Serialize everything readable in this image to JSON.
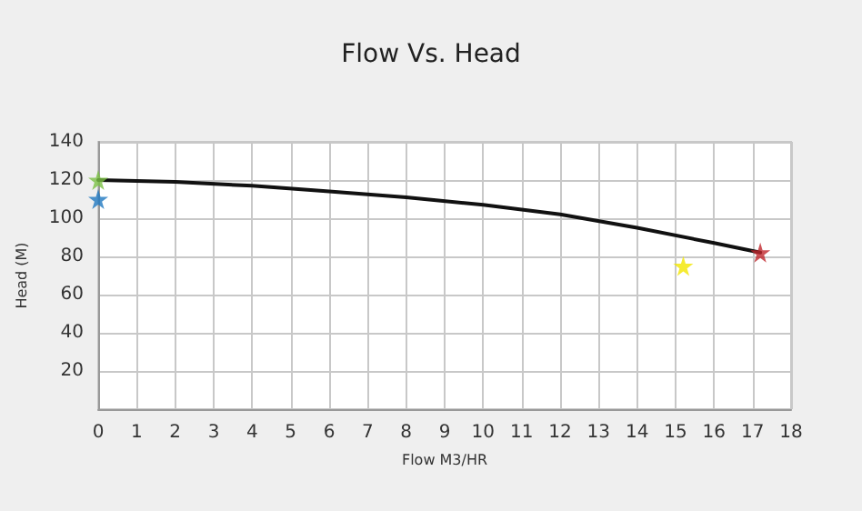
{
  "chart_data": {
    "type": "line",
    "title": "Flow Vs. Head",
    "xlabel": "Flow M3/HR",
    "ylabel": "Head (M)",
    "xlim": [
      0,
      18
    ],
    "xticks": [
      0,
      1,
      2,
      3,
      4,
      5,
      6,
      7,
      8,
      9,
      10,
      11,
      12,
      13,
      14,
      15,
      16,
      17,
      18
    ],
    "ylim": [
      0,
      140
    ],
    "yticks": [
      {
        "value": 0,
        "label": null
      },
      20,
      40,
      60,
      80,
      100,
      120,
      140
    ],
    "grid": true,
    "series": [
      {
        "color": "#111111",
        "marker": "none",
        "line_style": "solid",
        "x": [
          0,
          2,
          4,
          6,
          8,
          10,
          12,
          14,
          16,
          17.2
        ],
        "values": [
          120,
          119,
          117,
          114,
          111,
          107,
          102,
          95,
          87,
          82
        ]
      },
      {
        "type": "scatter",
        "color": "#7ac143",
        "marker": "star",
        "x": [
          0
        ],
        "values": [
          120
        ]
      },
      {
        "type": "scatter",
        "color": "#1f78c1",
        "marker": "star",
        "x": [
          0
        ],
        "values": [
          110
        ]
      },
      {
        "type": "scatter",
        "color": "#f2e600",
        "marker": "star",
        "x": [
          15.2
        ],
        "values": [
          75
        ]
      },
      {
        "type": "scatter",
        "color": "#c0272d",
        "marker": "star",
        "x": [
          17.2
        ],
        "values": [
          82
        ]
      }
    ]
  }
}
